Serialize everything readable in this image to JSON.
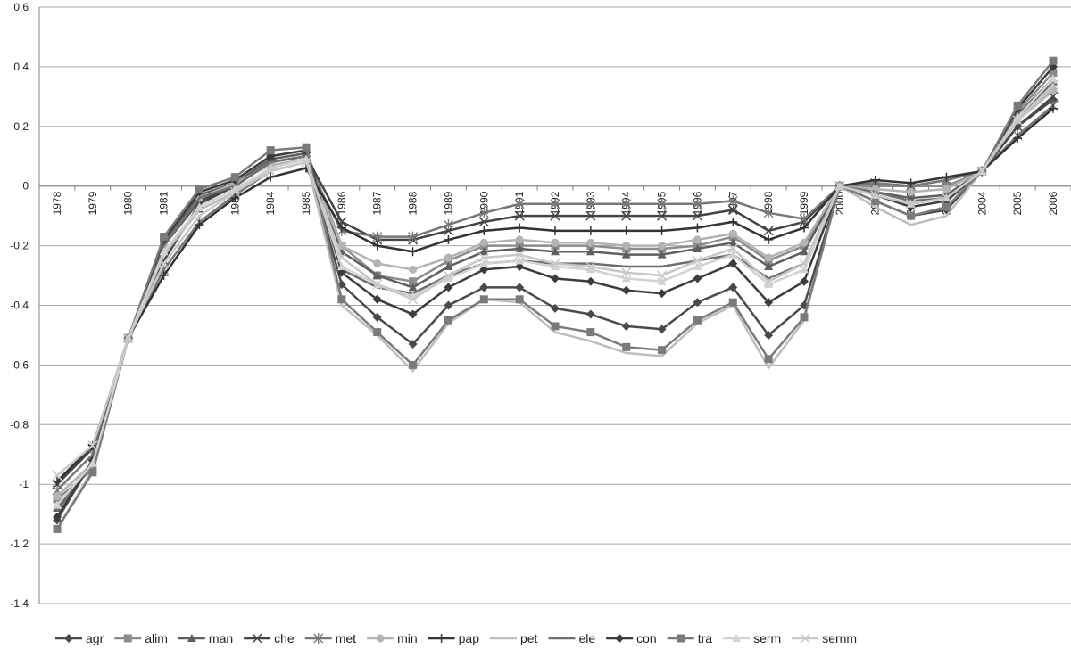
{
  "chart_data": {
    "type": "line",
    "title": "",
    "xlabel": "",
    "ylabel": "",
    "ylim": [
      -1.4,
      0.6
    ],
    "y_ticks": [
      "0,6",
      "0,4",
      "0,2",
      "0",
      "-0,2",
      "-0,4",
      "-0,6",
      "-0,8",
      "-1",
      "-1,2",
      "-1,4"
    ],
    "y_tick_values": [
      0.6,
      0.4,
      0.2,
      0,
      -0.2,
      -0.4,
      -0.6,
      -0.8,
      -1,
      -1.2,
      -1.4
    ],
    "grid": true,
    "legend_position": "bottom",
    "categories": [
      "1978",
      "1979",
      "1980",
      "1981",
      "1982",
      "1983",
      "1984",
      "1985",
      "1986",
      "1987",
      "1988",
      "1989",
      "1990",
      "1991",
      "1992",
      "1993",
      "1994",
      "1995",
      "1996",
      "1997",
      "1998",
      "1999",
      "2000",
      "2001",
      "2002",
      "2003",
      "2004",
      "2005",
      "2006"
    ],
    "series": [
      {
        "name": "agr",
        "color": "#4a4a4a",
        "marker": "diamond",
        "values": [
          -1.12,
          -0.92,
          -0.51,
          -0.2,
          -0.05,
          0.0,
          0.08,
          0.1,
          -0.33,
          -0.44,
          -0.53,
          -0.4,
          -0.34,
          -0.34,
          -0.41,
          -0.43,
          -0.47,
          -0.48,
          -0.39,
          -0.34,
          -0.5,
          -0.4,
          0.0,
          -0.05,
          -0.1,
          -0.08,
          0.05,
          0.2,
          0.29
        ]
      },
      {
        "name": "alim",
        "color": "#8c8c8c",
        "marker": "square",
        "values": [
          -1.05,
          -0.95,
          -0.51,
          -0.18,
          -0.02,
          0.02,
          0.1,
          0.12,
          -0.2,
          -0.3,
          -0.32,
          -0.25,
          -0.2,
          -0.2,
          -0.2,
          -0.2,
          -0.21,
          -0.21,
          -0.2,
          -0.17,
          -0.25,
          -0.2,
          0.0,
          0.0,
          0.0,
          0.0,
          0.05,
          0.25,
          0.38
        ]
      },
      {
        "name": "man",
        "color": "#5f5f5f",
        "marker": "triangle",
        "values": [
          -1.08,
          -0.93,
          -0.51,
          -0.19,
          -0.03,
          0.01,
          0.09,
          0.11,
          -0.22,
          -0.3,
          -0.34,
          -0.27,
          -0.22,
          -0.21,
          -0.22,
          -0.22,
          -0.23,
          -0.23,
          -0.21,
          -0.19,
          -0.27,
          -0.22,
          0.0,
          -0.02,
          -0.04,
          -0.03,
          0.05,
          0.23,
          0.35
        ]
      },
      {
        "name": "che",
        "color": "#444444",
        "marker": "x",
        "values": [
          -1.0,
          -0.88,
          -0.51,
          -0.25,
          -0.06,
          0.0,
          0.08,
          0.1,
          -0.12,
          -0.18,
          -0.18,
          -0.15,
          -0.12,
          -0.1,
          -0.1,
          -0.1,
          -0.1,
          -0.1,
          -0.1,
          -0.08,
          -0.15,
          -0.12,
          0.0,
          0.01,
          0.0,
          0.02,
          0.05,
          0.2,
          0.3
        ]
      },
      {
        "name": "met",
        "color": "#777777",
        "marker": "star",
        "values": [
          -1.02,
          -0.9,
          -0.51,
          -0.28,
          -0.12,
          -0.03,
          0.05,
          0.08,
          -0.15,
          -0.17,
          -0.17,
          -0.13,
          -0.09,
          -0.06,
          -0.06,
          -0.06,
          -0.06,
          -0.06,
          -0.06,
          -0.05,
          -0.09,
          -0.11,
          0.0,
          0.01,
          0.0,
          0.02,
          0.05,
          0.17,
          0.27
        ]
      },
      {
        "name": "min",
        "color": "#b3b3b3",
        "marker": "circle",
        "values": [
          -1.04,
          -0.93,
          -0.51,
          -0.2,
          -0.04,
          0.01,
          0.07,
          0.09,
          -0.2,
          -0.26,
          -0.28,
          -0.24,
          -0.19,
          -0.18,
          -0.19,
          -0.19,
          -0.2,
          -0.2,
          -0.18,
          -0.16,
          -0.24,
          -0.19,
          0.0,
          -0.01,
          -0.02,
          -0.01,
          0.05,
          0.22,
          0.32
        ]
      },
      {
        "name": "pap",
        "color": "#333333",
        "marker": "plus",
        "values": [
          -0.99,
          -0.87,
          -0.51,
          -0.3,
          -0.13,
          -0.04,
          0.03,
          0.06,
          -0.14,
          -0.2,
          -0.22,
          -0.18,
          -0.15,
          -0.14,
          -0.15,
          -0.15,
          -0.15,
          -0.15,
          -0.14,
          -0.12,
          -0.18,
          -0.14,
          0.0,
          0.02,
          0.01,
          0.03,
          0.05,
          0.16,
          0.26
        ]
      },
      {
        "name": "pet",
        "color": "#bdbdbd",
        "marker": "none",
        "values": [
          -1.15,
          -0.95,
          -0.51,
          -0.23,
          -0.08,
          -0.02,
          0.06,
          0.09,
          -0.4,
          -0.5,
          -0.62,
          -0.46,
          -0.38,
          -0.39,
          -0.49,
          -0.52,
          -0.56,
          -0.57,
          -0.46,
          -0.4,
          -0.61,
          -0.45,
          0.0,
          -0.07,
          -0.13,
          -0.1,
          0.05,
          0.22,
          0.33
        ]
      },
      {
        "name": "ele",
        "color": "#6e6e6e",
        "marker": "none",
        "values": [
          -1.09,
          -0.93,
          -0.51,
          -0.2,
          -0.04,
          0.0,
          0.08,
          0.1,
          -0.28,
          -0.34,
          -0.36,
          -0.3,
          -0.26,
          -0.25,
          -0.26,
          -0.26,
          -0.27,
          -0.27,
          -0.25,
          -0.23,
          -0.31,
          -0.26,
          0.0,
          -0.02,
          -0.05,
          -0.04,
          0.05,
          0.24,
          0.36
        ]
      },
      {
        "name": "con",
        "color": "#3c3c3c",
        "marker": "diamond",
        "values": [
          -1.11,
          -0.92,
          -0.51,
          -0.18,
          -0.02,
          0.02,
          0.1,
          0.12,
          -0.29,
          -0.38,
          -0.43,
          -0.34,
          -0.28,
          -0.27,
          -0.31,
          -0.32,
          -0.35,
          -0.36,
          -0.31,
          -0.26,
          -0.39,
          -0.32,
          0.0,
          -0.03,
          -0.07,
          -0.05,
          0.05,
          0.26,
          0.4
        ]
      },
      {
        "name": "tra",
        "color": "#7a7a7a",
        "marker": "square",
        "values": [
          -1.15,
          -0.96,
          -0.51,
          -0.17,
          -0.01,
          0.03,
          0.12,
          0.13,
          -0.38,
          -0.49,
          -0.6,
          -0.45,
          -0.38,
          -0.38,
          -0.47,
          -0.49,
          -0.54,
          -0.55,
          -0.45,
          -0.39,
          -0.58,
          -0.44,
          0.0,
          -0.05,
          -0.1,
          -0.07,
          0.05,
          0.27,
          0.42
        ]
      },
      {
        "name": "serm",
        "color": "#d2d2d2",
        "marker": "triangle",
        "values": [
          -1.07,
          -0.93,
          -0.51,
          -0.22,
          -0.07,
          -0.01,
          0.06,
          0.09,
          -0.27,
          -0.33,
          -0.37,
          -0.31,
          -0.26,
          -0.25,
          -0.27,
          -0.28,
          -0.31,
          -0.32,
          -0.27,
          -0.23,
          -0.33,
          -0.28,
          0.0,
          -0.03,
          -0.06,
          -0.04,
          0.05,
          0.23,
          0.36
        ]
      },
      {
        "name": "sernm",
        "color": "#c8c8c8",
        "marker": "x",
        "values": [
          -0.97,
          -0.87,
          -0.51,
          -0.26,
          -0.1,
          -0.02,
          0.05,
          0.08,
          -0.24,
          -0.33,
          -0.38,
          -0.3,
          -0.24,
          -0.23,
          -0.26,
          -0.27,
          -0.29,
          -0.3,
          -0.25,
          -0.21,
          -0.32,
          -0.26,
          0.0,
          -0.03,
          -0.06,
          -0.04,
          0.05,
          0.22,
          0.34
        ]
      }
    ]
  }
}
